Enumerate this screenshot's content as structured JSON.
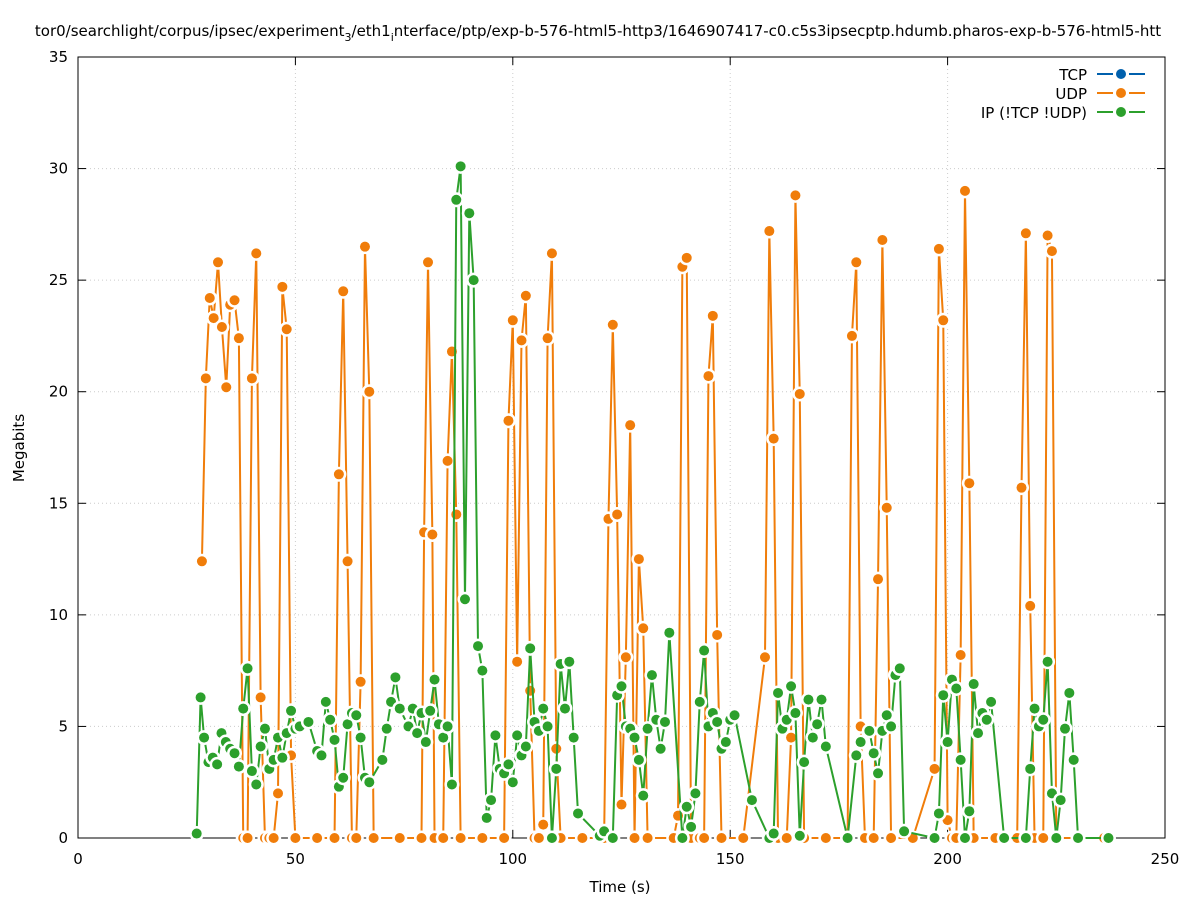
{
  "chart_data": {
    "type": "line",
    "title": "tor0/searchlight/corpus/ipsec/experiment_3/eth1_interface/ptp/exp-b-576-html5-http3/1646907417-c0.c5s3ipsecptp.hdumb.pharos-exp-b-576-html5-htt",
    "title_main_a": "tor0/searchlight/corpus/ipsec/experiment",
    "title_sub_a": "3",
    "title_main_b": "/eth1",
    "title_sub_b": "i",
    "title_main_c": "nterface/ptp/exp-b-576-html5-http3/1646907417-c0.c5s3ipsecptp.hdumb.pharos-exp-b-576-html5-htt",
    "xlabel": "Time (s)",
    "ylabel": "Megabits",
    "xlim": [
      0,
      250
    ],
    "ylim": [
      0,
      35
    ],
    "xticks": [
      0,
      50,
      100,
      150,
      200,
      250
    ],
    "yticks": [
      0,
      5,
      10,
      15,
      20,
      25,
      30,
      35
    ],
    "grid": true,
    "legend_position": "top-right",
    "series": [
      {
        "name": "TCP",
        "color": "#0060ad",
        "points": []
      },
      {
        "name": "UDP",
        "color": "#f07d0a",
        "points": [
          [
            28.5,
            12.4
          ],
          [
            29.4,
            20.6
          ],
          [
            30.3,
            24.2
          ],
          [
            31.2,
            23.3
          ],
          [
            32.2,
            25.8
          ],
          [
            33.1,
            22.9
          ],
          [
            34.1,
            20.2
          ],
          [
            35,
            23.9
          ],
          [
            36,
            24.1
          ],
          [
            37,
            22.4
          ],
          [
            38,
            0
          ],
          [
            39,
            0
          ],
          [
            40,
            20.6
          ],
          [
            41,
            26.2
          ],
          [
            42,
            6.3
          ],
          [
            43,
            0
          ],
          [
            44,
            0
          ],
          [
            45,
            0
          ],
          [
            46,
            2
          ],
          [
            47,
            24.7
          ],
          [
            48,
            22.8
          ],
          [
            49,
            3.7
          ],
          [
            50,
            0
          ],
          [
            55,
            0
          ],
          [
            59,
            0
          ],
          [
            60,
            16.3
          ],
          [
            61,
            24.5
          ],
          [
            62,
            12.4
          ],
          [
            63,
            0
          ],
          [
            64,
            0
          ],
          [
            65,
            7
          ],
          [
            66,
            26.5
          ],
          [
            67,
            20
          ],
          [
            68,
            0
          ],
          [
            74,
            0
          ],
          [
            79,
            0
          ],
          [
            79.6,
            13.7
          ],
          [
            80.5,
            25.8
          ],
          [
            81.5,
            13.6
          ],
          [
            82,
            0
          ],
          [
            84,
            0
          ],
          [
            85,
            16.9
          ],
          [
            86,
            21.8
          ],
          [
            87,
            14.5
          ],
          [
            88,
            0
          ],
          [
            93,
            0
          ],
          [
            98,
            0
          ],
          [
            99,
            18.7
          ],
          [
            100,
            23.2
          ],
          [
            101,
            7.9
          ],
          [
            102,
            22.3
          ],
          [
            103,
            24.3
          ],
          [
            104,
            6.6
          ],
          [
            105,
            0
          ],
          [
            106,
            0
          ],
          [
            107,
            0.6
          ],
          [
            108,
            22.4
          ],
          [
            109,
            26.2
          ],
          [
            110,
            4
          ],
          [
            111,
            0
          ],
          [
            116,
            0
          ],
          [
            121,
            0
          ],
          [
            122,
            14.3
          ],
          [
            123,
            23
          ],
          [
            124,
            14.5
          ],
          [
            125,
            1.5
          ],
          [
            126,
            8.1
          ],
          [
            127,
            18.5
          ],
          [
            128,
            0
          ],
          [
            129,
            12.5
          ],
          [
            130,
            9.4
          ],
          [
            131,
            0
          ],
          [
            137,
            0
          ],
          [
            138,
            1
          ],
          [
            139,
            25.6
          ],
          [
            140,
            26
          ],
          [
            141,
            0
          ],
          [
            143,
            0
          ],
          [
            144,
            0
          ],
          [
            145,
            20.7
          ],
          [
            146,
            23.4
          ],
          [
            147,
            9.1
          ],
          [
            148,
            0
          ],
          [
            153,
            0
          ],
          [
            158,
            8.1
          ],
          [
            159,
            27.2
          ],
          [
            160,
            17.9
          ],
          [
            161,
            0
          ],
          [
            163,
            0
          ],
          [
            164,
            4.5
          ],
          [
            165,
            28.8
          ],
          [
            166,
            19.9
          ],
          [
            167,
            0
          ],
          [
            172,
            0
          ],
          [
            177,
            0
          ],
          [
            178,
            22.5
          ],
          [
            179,
            25.8
          ],
          [
            180,
            5
          ],
          [
            181,
            0
          ],
          [
            183,
            0
          ],
          [
            184,
            11.6
          ],
          [
            185,
            26.8
          ],
          [
            186,
            14.8
          ],
          [
            187,
            0
          ],
          [
            192,
            0
          ],
          [
            197,
            3.1
          ],
          [
            198,
            26.4
          ],
          [
            199,
            23.2
          ],
          [
            200,
            0.8
          ],
          [
            201,
            0
          ],
          [
            202,
            0
          ],
          [
            203,
            8.2
          ],
          [
            204,
            29
          ],
          [
            205,
            15.9
          ],
          [
            206,
            0
          ],
          [
            211,
            0
          ],
          [
            216,
            0
          ],
          [
            217,
            15.7
          ],
          [
            218,
            27.1
          ],
          [
            219,
            10.4
          ],
          [
            220,
            0
          ],
          [
            222,
            0
          ],
          [
            223,
            27
          ],
          [
            224,
            26.3
          ],
          [
            225,
            0
          ],
          [
            230,
            0
          ],
          [
            236,
            0
          ]
        ]
      },
      {
        "name": "IP (!TCP  !UDP)",
        "color": "#2ca02c",
        "points": [
          [
            27.3,
            0.2
          ],
          [
            28.2,
            6.3
          ],
          [
            29,
            4.5
          ],
          [
            30,
            3.4
          ],
          [
            31,
            3.6
          ],
          [
            32,
            3.3
          ],
          [
            33,
            4.7
          ],
          [
            34,
            4.3
          ],
          [
            35,
            4
          ],
          [
            36,
            3.8
          ],
          [
            37,
            3.2
          ],
          [
            38,
            5.8
          ],
          [
            39,
            7.6
          ],
          [
            40,
            3
          ],
          [
            41,
            2.4
          ],
          [
            42,
            4.1
          ],
          [
            43,
            4.9
          ],
          [
            44,
            3.1
          ],
          [
            45,
            3.5
          ],
          [
            46,
            4.5
          ],
          [
            47,
            3.6
          ],
          [
            48,
            4.7
          ],
          [
            49,
            5.7
          ],
          [
            50,
            4.9
          ],
          [
            51,
            5
          ],
          [
            53,
            5.2
          ],
          [
            55,
            3.9
          ],
          [
            56,
            3.7
          ],
          [
            57,
            6.1
          ],
          [
            58,
            5.3
          ],
          [
            59,
            4.4
          ],
          [
            60,
            2.3
          ],
          [
            61,
            2.7
          ],
          [
            62,
            5.1
          ],
          [
            63,
            5.6
          ],
          [
            64,
            5.5
          ],
          [
            65,
            4.5
          ],
          [
            66,
            2.7
          ],
          [
            67,
            2.5
          ],
          [
            70,
            3.5
          ],
          [
            71,
            4.9
          ],
          [
            72,
            6.1
          ],
          [
            73,
            7.2
          ],
          [
            74,
            5.8
          ],
          [
            76,
            5
          ],
          [
            77,
            5.8
          ],
          [
            78,
            4.7
          ],
          [
            79,
            5.6
          ],
          [
            80,
            4.3
          ],
          [
            81,
            5.7
          ],
          [
            82,
            7.1
          ],
          [
            83,
            5.1
          ],
          [
            84,
            4.5
          ],
          [
            85,
            5
          ],
          [
            86,
            2.4
          ],
          [
            87,
            28.6
          ],
          [
            88,
            30.1
          ],
          [
            89,
            10.7
          ],
          [
            90,
            28
          ],
          [
            91,
            25
          ],
          [
            92,
            8.6
          ],
          [
            93,
            7.5
          ],
          [
            94,
            0.9
          ],
          [
            95,
            1.7
          ],
          [
            96,
            4.6
          ],
          [
            97,
            3.1
          ],
          [
            98,
            2.9
          ],
          [
            99,
            3.3
          ],
          [
            100,
            2.5
          ],
          [
            101,
            4.6
          ],
          [
            102,
            3.7
          ],
          [
            103,
            4.1
          ],
          [
            104,
            8.5
          ],
          [
            105,
            5.2
          ],
          [
            106,
            4.8
          ],
          [
            107,
            5.8
          ],
          [
            108,
            5
          ],
          [
            109,
            0
          ],
          [
            110,
            3.1
          ],
          [
            111,
            7.8
          ],
          [
            112,
            5.8
          ],
          [
            113,
            7.9
          ],
          [
            114,
            4.5
          ],
          [
            115,
            1.1
          ],
          [
            120,
            0.1
          ],
          [
            121,
            0.3
          ],
          [
            123,
            0
          ],
          [
            124,
            6.4
          ],
          [
            125,
            6.8
          ],
          [
            126,
            5
          ],
          [
            127,
            4.9
          ],
          [
            128,
            4.5
          ],
          [
            129,
            3.5
          ],
          [
            130,
            1.9
          ],
          [
            131,
            4.9
          ],
          [
            132,
            7.3
          ],
          [
            133,
            5.3
          ],
          [
            134,
            4
          ],
          [
            135,
            5.2
          ],
          [
            136,
            9.2
          ],
          [
            139,
            0
          ],
          [
            140,
            1.4
          ],
          [
            141,
            0.5
          ],
          [
            142,
            2
          ],
          [
            143,
            6.1
          ],
          [
            144,
            8.4
          ],
          [
            145,
            5
          ],
          [
            146,
            5.6
          ],
          [
            147,
            5.2
          ],
          [
            148,
            4
          ],
          [
            149,
            4.3
          ],
          [
            150,
            5.3
          ],
          [
            151,
            5.5
          ],
          [
            155,
            1.7
          ],
          [
            159,
            0
          ],
          [
            160,
            0.2
          ],
          [
            161,
            6.5
          ],
          [
            162,
            4.9
          ],
          [
            163,
            5.3
          ],
          [
            164,
            6.8
          ],
          [
            165,
            5.6
          ],
          [
            166,
            0.1
          ],
          [
            167,
            3.4
          ],
          [
            168,
            6.2
          ],
          [
            169,
            4.5
          ],
          [
            170,
            5.1
          ],
          [
            171,
            6.2
          ],
          [
            172,
            4.1
          ],
          [
            177,
            0
          ],
          [
            179,
            3.7
          ],
          [
            180,
            4.3
          ],
          [
            182,
            4.8
          ],
          [
            183,
            3.8
          ],
          [
            184,
            2.9
          ],
          [
            185,
            4.8
          ],
          [
            186,
            5.5
          ],
          [
            187,
            5
          ],
          [
            188,
            7.3
          ],
          [
            189,
            7.6
          ],
          [
            190,
            0.3
          ],
          [
            197,
            0
          ],
          [
            198,
            1.1
          ],
          [
            199,
            6.4
          ],
          [
            200,
            4.3
          ],
          [
            201,
            7.1
          ],
          [
            202,
            6.7
          ],
          [
            203,
            3.5
          ],
          [
            204,
            0
          ],
          [
            205,
            1.2
          ],
          [
            206,
            6.9
          ],
          [
            207,
            4.7
          ],
          [
            208,
            5.6
          ],
          [
            209,
            5.3
          ],
          [
            210,
            6.1
          ],
          [
            213,
            0
          ],
          [
            218,
            0
          ],
          [
            219,
            3.1
          ],
          [
            220,
            5.8
          ],
          [
            221,
            5
          ],
          [
            222,
            5.3
          ],
          [
            223,
            7.9
          ],
          [
            224,
            2
          ],
          [
            225,
            0
          ],
          [
            226,
            1.7
          ],
          [
            227,
            4.9
          ],
          [
            228,
            6.5
          ],
          [
            229,
            3.5
          ],
          [
            230,
            0
          ],
          [
            237,
            0
          ]
        ]
      }
    ]
  }
}
